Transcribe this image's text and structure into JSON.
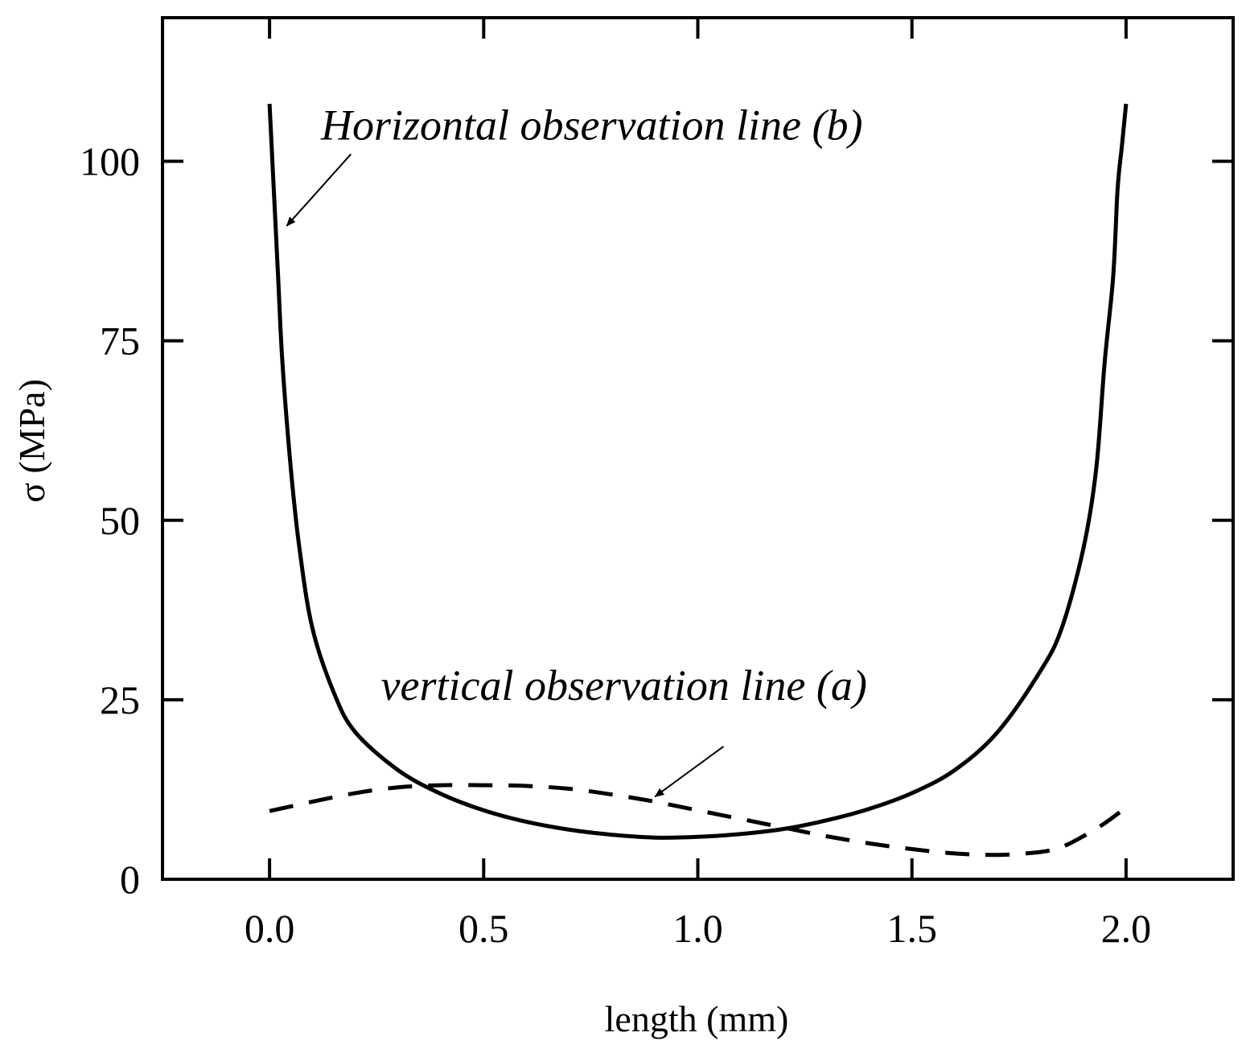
{
  "chart_data": {
    "type": "line",
    "title": "",
    "xlabel": "length (mm)",
    "ylabel": "σ (MPa)",
    "xlim": [
      -0.25,
      2.25
    ],
    "ylim": [
      0,
      120
    ],
    "xticks": [
      0.0,
      0.5,
      1.0,
      1.5,
      2.0
    ],
    "xtick_labels": [
      "0.0",
      "0.5",
      "1.0",
      "1.5",
      "2.0"
    ],
    "yticks": [
      0,
      25,
      50,
      75,
      100
    ],
    "ytick_labels": [
      "0",
      "25",
      "50",
      "75",
      "100"
    ],
    "grid": false,
    "series": [
      {
        "name": "Horizontal observation line (b)",
        "style": "solid",
        "color": "#000000",
        "x": [
          0.0,
          0.01,
          0.02,
          0.03,
          0.05,
          0.07,
          0.1,
          0.15,
          0.2,
          0.3,
          0.4,
          0.5,
          0.6,
          0.7,
          0.8,
          0.9,
          1.0,
          1.1,
          1.2,
          1.3,
          1.4,
          1.5,
          1.6,
          1.7,
          1.8,
          1.85,
          1.9,
          1.93,
          1.95,
          1.97,
          1.98,
          1.99,
          2.0
        ],
        "y": [
          108,
          96,
          84,
          72,
          57,
          46,
          35,
          26,
          20.5,
          15.2,
          11.9,
          9.6,
          8.0,
          6.9,
          6.2,
          5.8,
          5.9,
          6.3,
          7.0,
          8.2,
          9.8,
          12.0,
          15.2,
          20.5,
          29,
          35,
          46,
          57,
          72,
          84,
          96,
          102,
          108
        ]
      },
      {
        "name": "vertical observation line (a)",
        "style": "dashed",
        "color": "#000000",
        "x": [
          0.0,
          0.1,
          0.2,
          0.3,
          0.4,
          0.5,
          0.6,
          0.7,
          0.8,
          0.9,
          1.0,
          1.1,
          1.2,
          1.3,
          1.4,
          1.5,
          1.6,
          1.7,
          1.8,
          1.85,
          1.9,
          1.95,
          2.0
        ],
        "y": [
          9.5,
          10.8,
          12.0,
          12.8,
          13.1,
          13.1,
          13.0,
          12.6,
          11.8,
          10.8,
          9.6,
          8.4,
          7.2,
          6.0,
          5.0,
          4.2,
          3.6,
          3.4,
          3.8,
          4.5,
          6.0,
          7.8,
          10.0
        ]
      }
    ],
    "annotations": [
      {
        "text": "Horizontal observation line (b)",
        "text_at": [
          0.12,
          103
        ],
        "arrow_from": [
          0.19,
          101
        ],
        "arrow_to": [
          0.04,
          91
        ]
      },
      {
        "text": "vertical observation line (a)",
        "text_at": [
          0.26,
          25
        ],
        "arrow_from": [
          1.06,
          18.5
        ],
        "arrow_to": [
          0.9,
          11.5
        ]
      }
    ]
  }
}
